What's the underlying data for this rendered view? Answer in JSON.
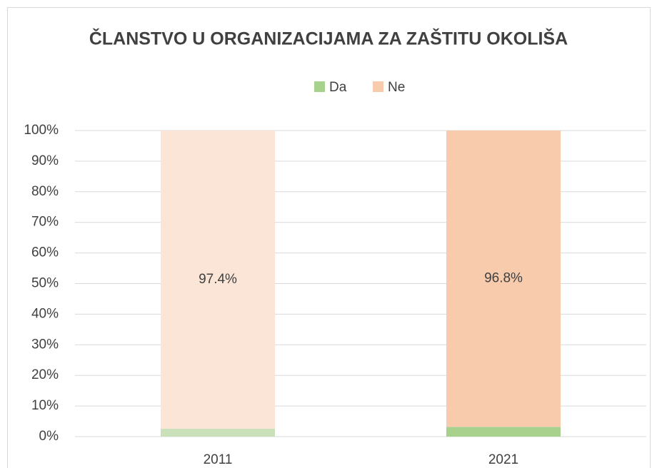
{
  "chart_data": {
    "type": "stacked_bar",
    "title": "ČLANSTVO U ORGANIZACIJAMA ZA ZAŠTITU OKOLIŠA",
    "categories": [
      "2011",
      "2021"
    ],
    "series": [
      {
        "name": "Da",
        "color": "#a9d18e",
        "colors": [
          "#c9e0b8",
          "#a9d18e"
        ],
        "values": [
          2.6,
          3.2
        ]
      },
      {
        "name": "Ne",
        "color": "#f8cbad",
        "colors": [
          "#fbe5d6",
          "#f8cbad"
        ],
        "values": [
          97.4,
          96.8
        ],
        "value_labels": [
          "97.4%",
          "96.8%"
        ]
      }
    ],
    "ylim": [
      0,
      100
    ],
    "yticks": [
      {
        "value": 0,
        "label": "0%"
      },
      {
        "value": 10,
        "label": "10%"
      },
      {
        "value": 20,
        "label": "20%"
      },
      {
        "value": 30,
        "label": "30%"
      },
      {
        "value": 40,
        "label": "40%"
      },
      {
        "value": 50,
        "label": "50%"
      },
      {
        "value": 60,
        "label": "60%"
      },
      {
        "value": 70,
        "label": "70%"
      },
      {
        "value": 80,
        "label": "80%"
      },
      {
        "value": 90,
        "label": "90%"
      },
      {
        "value": 100,
        "label": "100%"
      }
    ],
    "grid": true,
    "legend": "top"
  }
}
